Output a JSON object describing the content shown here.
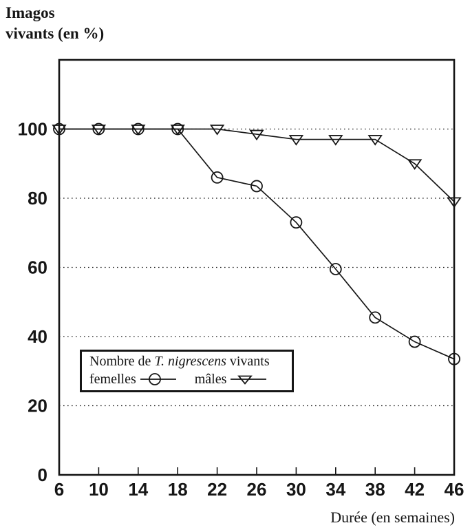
{
  "colors": {
    "ink": "#161616",
    "background": "#ffffff"
  },
  "titles": {
    "y_line1": "Imagos",
    "y_line2": "vivants (en %)",
    "x": "Durée (en semaines)"
  },
  "legend": {
    "title_prefix": "Nombre de ",
    "title_species": "T. nigrescens",
    "title_suffix": " vivants",
    "series": [
      {
        "label": "femelles",
        "marker": "circle"
      },
      {
        "label": "mâles",
        "marker": "triangle-down"
      }
    ]
  },
  "chart_data": {
    "type": "line",
    "title": "",
    "xlabel": "Durée (en semaines)",
    "ylabel": "Imagos vivants (en %)",
    "x": [
      6,
      10,
      14,
      18,
      22,
      26,
      30,
      34,
      38,
      42,
      46
    ],
    "x_ticks": [
      6,
      10,
      14,
      18,
      22,
      26,
      30,
      34,
      38,
      42,
      46
    ],
    "y_ticks": [
      0,
      20,
      40,
      60,
      80,
      100
    ],
    "xlim": [
      6,
      46
    ],
    "ylim": [
      0,
      120
    ],
    "grid": "horizontal dotted lines at each labeled y tick (20-100)",
    "legend_position": "framed box inside plot, lower left",
    "series": [
      {
        "id": "femelles",
        "name": "femelles",
        "marker": "circle",
        "values": [
          100,
          100,
          100,
          100,
          86,
          83.5,
          73,
          59.5,
          45.5,
          38.5,
          33.5
        ]
      },
      {
        "id": "males",
        "name": "mâles",
        "marker": "triangle-down",
        "values": [
          100,
          100,
          100,
          100,
          100,
          98.5,
          97,
          97,
          97,
          90,
          79
        ]
      }
    ]
  }
}
